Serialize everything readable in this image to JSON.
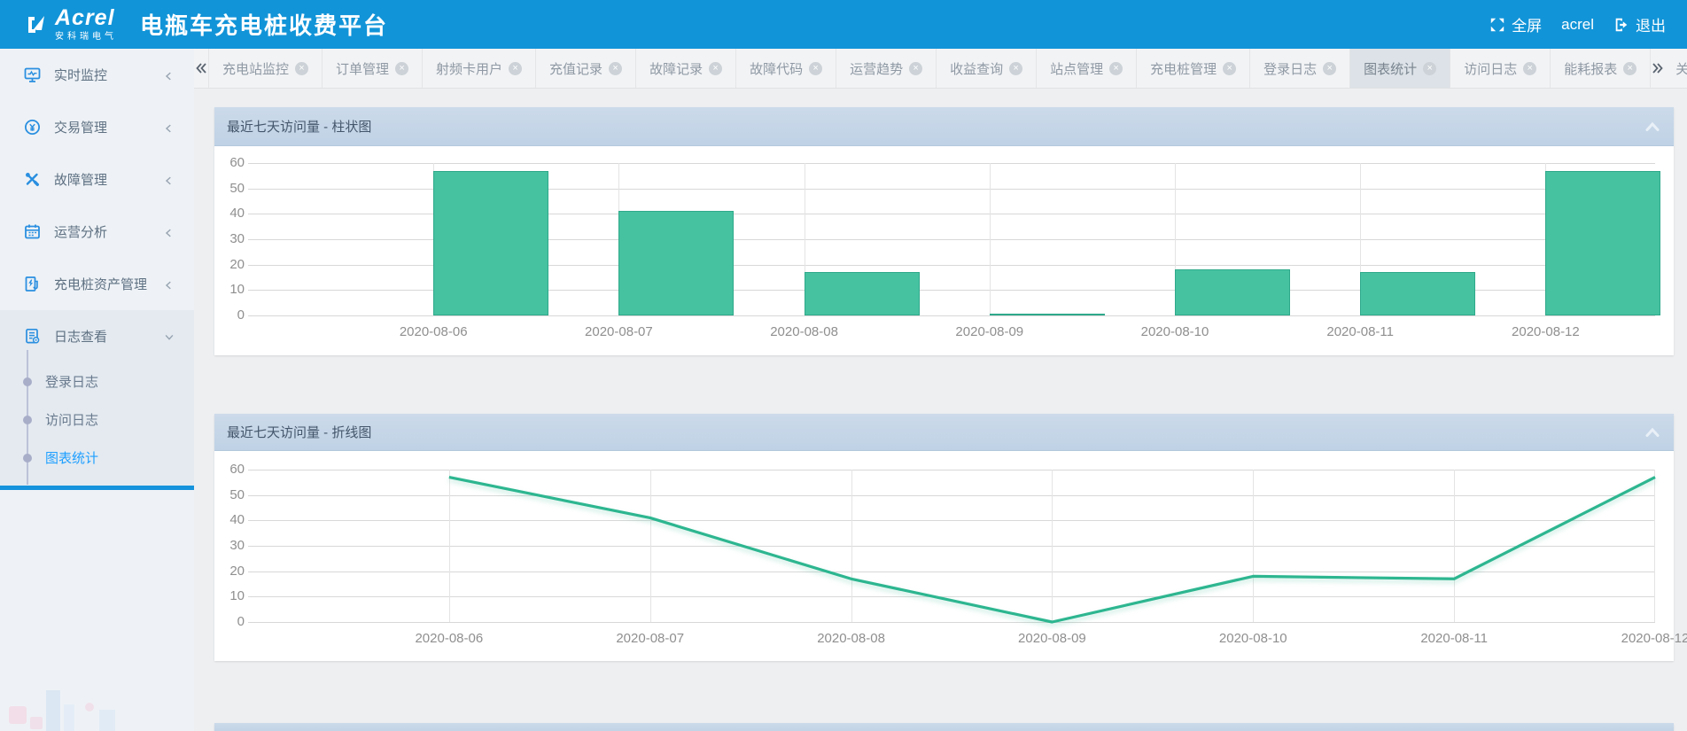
{
  "header": {
    "logo_text": "Acrel",
    "logo_subtext": "安科瑞电气",
    "title": "电瓶车充电桩收费平台",
    "fullscreen_label": "全屏",
    "username": "acrel",
    "logout_label": "退出"
  },
  "tabbar": {
    "tabs": [
      {
        "label": "充电站监控",
        "closable": true,
        "active": false
      },
      {
        "label": "订单管理",
        "closable": true,
        "active": false
      },
      {
        "label": "射频卡用户",
        "closable": true,
        "active": false
      },
      {
        "label": "充值记录",
        "closable": true,
        "active": false
      },
      {
        "label": "故障记录",
        "closable": true,
        "active": false
      },
      {
        "label": "故障代码",
        "closable": true,
        "active": false
      },
      {
        "label": "运营趋势",
        "closable": true,
        "active": false
      },
      {
        "label": "收益查询",
        "closable": true,
        "active": false
      },
      {
        "label": "站点管理",
        "closable": true,
        "active": false
      },
      {
        "label": "充电桩管理",
        "closable": true,
        "active": false
      },
      {
        "label": "登录日志",
        "closable": true,
        "active": false
      },
      {
        "label": "图表统计",
        "closable": true,
        "active": true
      },
      {
        "label": "访问日志",
        "closable": true,
        "active": false
      },
      {
        "label": "能耗报表",
        "closable": true,
        "active": false
      }
    ],
    "close_ops_label": "关闭操作"
  },
  "sidebar": {
    "items": [
      {
        "label": "实时监控",
        "icon": "monitor-icon",
        "expanded": false
      },
      {
        "label": "交易管理",
        "icon": "transaction-icon",
        "expanded": false
      },
      {
        "label": "故障管理",
        "icon": "tools-icon",
        "expanded": false
      },
      {
        "label": "运营分析",
        "icon": "calendar-icon",
        "expanded": false
      },
      {
        "label": "充电桩资产管理",
        "icon": "charging-pile-icon",
        "expanded": false
      },
      {
        "label": "日志查看",
        "icon": "log-icon",
        "expanded": true,
        "children": [
          {
            "label": "登录日志",
            "active": false
          },
          {
            "label": "访问日志",
            "active": false
          },
          {
            "label": "图表统计",
            "active": true
          }
        ]
      }
    ]
  },
  "chart_data": [
    {
      "type": "bar",
      "title": "最近七天访问量 - 柱状图",
      "categories": [
        "2020-08-06",
        "2020-08-07",
        "2020-08-08",
        "2020-08-09",
        "2020-08-10",
        "2020-08-11",
        "2020-08-12"
      ],
      "values": [
        57,
        41,
        17,
        0,
        18,
        17,
        57
      ],
      "xlabel": "",
      "ylabel": "",
      "ylim": [
        0,
        60
      ],
      "yticks": [
        0,
        10,
        20,
        30,
        40,
        50,
        60
      ],
      "grid": true,
      "legend": "none",
      "bar_color": "#46c2a1",
      "bar_border_color": "#2fa98a"
    },
    {
      "type": "line",
      "title": "最近七天访问量 - 折线图",
      "categories": [
        "2020-08-06",
        "2020-08-07",
        "2020-08-08",
        "2020-08-09",
        "2020-08-10",
        "2020-08-11",
        "2020-08-12"
      ],
      "values": [
        57,
        41,
        17,
        0,
        18,
        17,
        57
      ],
      "xlabel": "",
      "ylabel": "",
      "ylim": [
        0,
        60
      ],
      "yticks": [
        0,
        10,
        20,
        30,
        40,
        50,
        60
      ],
      "grid": true,
      "legend": "none",
      "line_color": "#2db690"
    }
  ],
  "colors": {
    "header_blue": "#1294d8",
    "panel_header": "#c5d6e8",
    "accent_blue": "#1e9fff",
    "chart_green": "#46c2a1"
  }
}
